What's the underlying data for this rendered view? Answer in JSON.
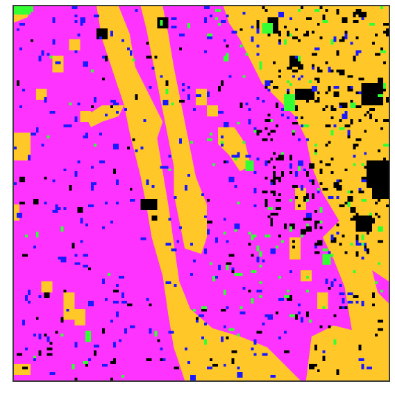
{
  "map": {
    "type": "classified-raster",
    "grid": {
      "cols": 136,
      "rows": 136
    },
    "classes": [
      {
        "id": 1,
        "color": "#ff33ff"
      },
      {
        "id": 2,
        "color": "#ffc828"
      },
      {
        "id": 3,
        "color": "#000000"
      },
      {
        "id": 4,
        "color": "#1a1aff"
      },
      {
        "id": 5,
        "color": "#33ff33"
      }
    ]
  }
}
